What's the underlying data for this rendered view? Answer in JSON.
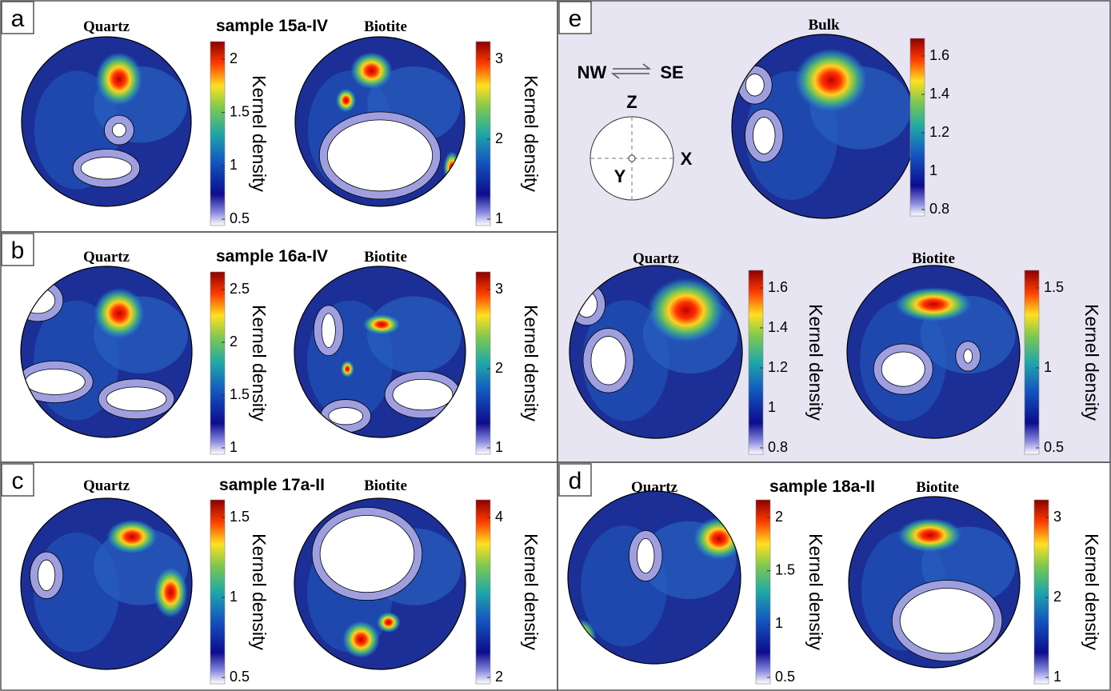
{
  "panels": [
    {
      "label": "a",
      "sample": "sample 15a-IV",
      "plots": [
        {
          "title": "Quartz",
          "ticks": [
            "0.5",
            "1",
            "1.5",
            "2"
          ],
          "axis_label": "Kernel density"
        },
        {
          "title": "Biotite",
          "ticks": [
            "1",
            "2",
            "3"
          ],
          "axis_label": "Kernel density"
        }
      ]
    },
    {
      "label": "b",
      "sample": "sample 16a-IV",
      "plots": [
        {
          "title": "Quartz",
          "ticks": [
            "1",
            "1.5",
            "2",
            "2.5"
          ],
          "axis_label": "Kernel density"
        },
        {
          "title": "Biotite",
          "ticks": [
            "1",
            "2",
            "3"
          ],
          "axis_label": "Kernel density"
        }
      ]
    },
    {
      "label": "c",
      "sample": "sample 17a-II",
      "plots": [
        {
          "title": "Quartz",
          "ticks": [
            "0.5",
            "1",
            "1.5"
          ],
          "axis_label": "Kernel density"
        },
        {
          "title": "Biotite",
          "ticks": [
            "2",
            "4"
          ],
          "axis_label": "Kernel density"
        }
      ]
    },
    {
      "label": "d",
      "sample": "sample 18a-II",
      "plots": [
        {
          "title": "Quartz",
          "ticks": [
            "0.5",
            "1",
            "1.5",
            "2"
          ],
          "axis_label": "Kernel density"
        },
        {
          "title": "Biotite",
          "ticks": [
            "1",
            "2",
            "3"
          ],
          "axis_label": "Kernel density"
        }
      ]
    },
    {
      "label": "e",
      "shear": {
        "left": "NW",
        "right": "SE"
      },
      "axes": {
        "z": "Z",
        "x": "X",
        "y": "Y"
      },
      "plots": [
        {
          "title": "Bulk",
          "ticks": [
            "0.8",
            "1",
            "1.2",
            "1.4",
            "1.6"
          ]
        },
        {
          "title": "Quartz",
          "ticks": [
            "0.8",
            "1",
            "1.2",
            "1.4",
            "1.6"
          ],
          "axis_label": "Kernel density"
        },
        {
          "title": "Biotite",
          "ticks": [
            "0.5",
            "1",
            "1.5"
          ],
          "axis_label": "Kernel density"
        }
      ]
    }
  ]
}
